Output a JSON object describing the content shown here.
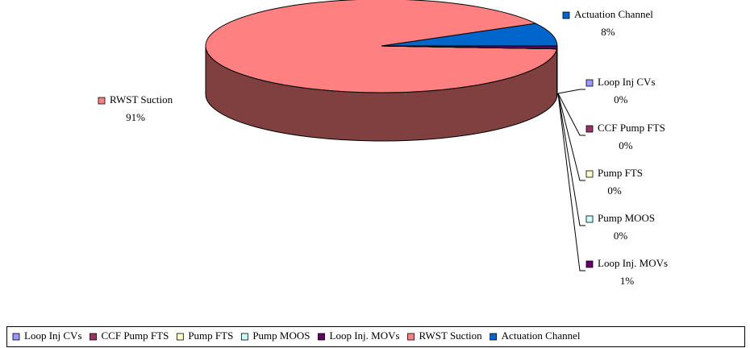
{
  "chart_data": {
    "type": "pie3d",
    "categories": [
      "Loop Inj CVs",
      "CCF Pump FTS",
      "Pump FTS",
      "Pump MOOS",
      "Loop Inj. MOVs",
      "RWST Suction",
      "Actuation Channel"
    ],
    "values": [
      0,
      0,
      0,
      0,
      1,
      91,
      8
    ],
    "value_labels": [
      "0%",
      "0%",
      "0%",
      "0%",
      "1%",
      "91%",
      "8%"
    ],
    "colors": [
      "#9999ff",
      "#993366",
      "#ffffcc",
      "#ccffff",
      "#660066",
      "#ff8080",
      "#0066cc"
    ],
    "legend": "bottom"
  }
}
